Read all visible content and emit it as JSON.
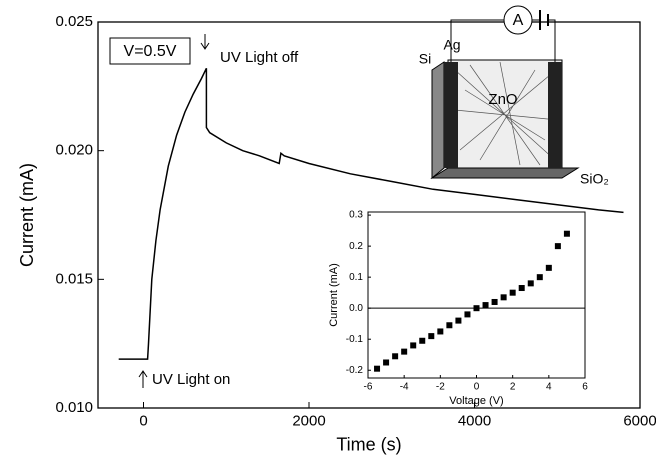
{
  "chart_data": [
    {
      "type": "line",
      "xlabel": "Time (s)",
      "ylabel": "Current (mA)",
      "x": [
        -300,
        0,
        50,
        60,
        100,
        150,
        200,
        300,
        400,
        500,
        600,
        700,
        760,
        760,
        800,
        1000,
        1200,
        1400,
        1640,
        1660,
        1700,
        2000,
        2500,
        3000,
        3500,
        4000,
        4500,
        5000,
        5500,
        5800
      ],
      "values": [
        0.0119,
        0.0119,
        0.0119,
        0.0125,
        0.015,
        0.0165,
        0.0177,
        0.0194,
        0.0206,
        0.0215,
        0.0222,
        0.0228,
        0.0232,
        0.0209,
        0.0207,
        0.0203,
        0.02,
        0.0198,
        0.0195,
        0.0199,
        0.0198,
        0.0195,
        0.0191,
        0.0188,
        0.0185,
        0.0183,
        0.0181,
        0.0179,
        0.0177,
        0.0176
      ],
      "color": "#000000",
      "xlim": [
        -550,
        6000
      ],
      "xticks": [
        0,
        2000,
        4000,
        6000
      ],
      "ylim": [
        0.01,
        0.025
      ],
      "yticks": [
        {
          "value": 0.01,
          "label": "0.010"
        },
        0.015,
        {
          "value": 0.02,
          "label": "0.020"
        },
        0.025
      ],
      "annotations": [
        "V=0.5V",
        "UV Light off",
        "UV Light on"
      ]
    },
    {
      "type": "scatter",
      "xlabel": "Voltage (V)",
      "ylabel": "Current (mA)",
      "x": [
        -5.5,
        -5,
        -4.5,
        -4,
        -3.5,
        -3,
        -2.5,
        -2,
        -1.5,
        -1,
        -0.5,
        0,
        0.5,
        1,
        1.5,
        2,
        2.5,
        3,
        3.5,
        4,
        4.5,
        5
      ],
      "values": [
        -0.195,
        -0.175,
        -0.155,
        -0.14,
        -0.12,
        -0.105,
        -0.09,
        -0.075,
        -0.055,
        -0.04,
        -0.02,
        0,
        0.01,
        0.02,
        0.035,
        0.05,
        0.065,
        0.08,
        0.1,
        0.13,
        0.2,
        0.24
      ],
      "color": "#000000",
      "xlim": [
        -6,
        6
      ],
      "xticks": [
        -6,
        -4,
        -2,
        0,
        2,
        4,
        6
      ],
      "ylim": [
        -0.225,
        0.31
      ],
      "yticks": [
        -0.2,
        -0.1,
        {
          "value": 0,
          "label": "0.0"
        },
        0.1,
        0.2,
        0.3
      ]
    }
  ],
  "schematic": {
    "labels": [
      "A",
      "Si",
      "Ag",
      "ZnO",
      "SiO₂"
    ]
  }
}
